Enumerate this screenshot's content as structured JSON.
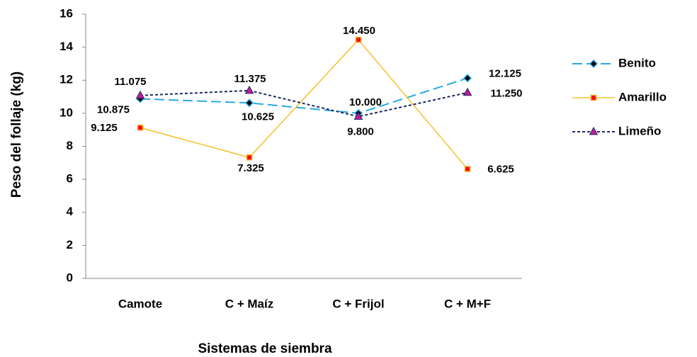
{
  "chart_data": {
    "type": "line",
    "x_label": "Sistemas de siembra",
    "y_label": "Peso del follaje (kg)",
    "categories": [
      "Camote",
      "C + Maíz",
      "C + Frijol",
      "C + M+F"
    ],
    "series": [
      {
        "name": "Benito",
        "color": "#29a8e0",
        "label_color": "#1f1fb4",
        "values": [
          10.875,
          10.625,
          10.0,
          12.125
        ],
        "value_labels": [
          "10.875",
          "10.625",
          "10.000",
          "12.125"
        ]
      },
      {
        "name": "Amarillo",
        "color": "#f5c02a",
        "label_color": "#000000",
        "values": [
          9.125,
          7.325,
          14.45,
          6.625
        ],
        "value_labels": [
          "9.125",
          "7.325",
          "14.450",
          "6.625"
        ]
      },
      {
        "name": "Limeño",
        "color": "#1f2a5e",
        "label_color": "#c0199f",
        "values": [
          11.075,
          11.375,
          9.8,
          11.25
        ],
        "value_labels": [
          "11.075",
          "11.375",
          "9.800",
          "11.250"
        ]
      }
    ],
    "ylim": [
      0,
      16
    ],
    "yticks": [
      0,
      2,
      4,
      6,
      8,
      10,
      12,
      14,
      16
    ],
    "grid": false,
    "legend": "right"
  }
}
